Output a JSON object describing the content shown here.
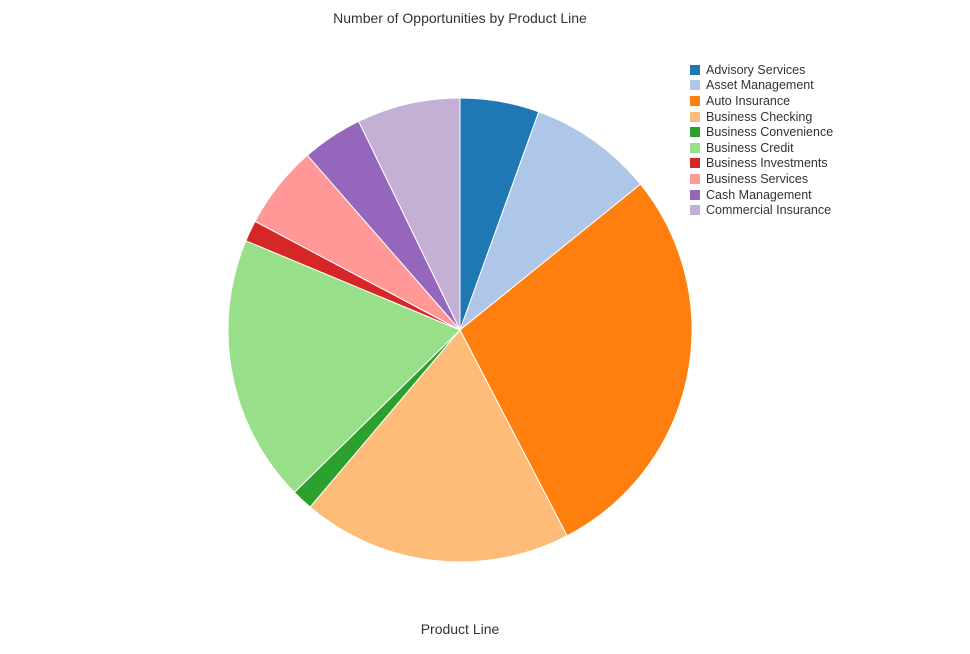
{
  "chart_data": {
    "type": "pie",
    "title": "Number of Opportunities by Product Line",
    "xlabel": "Product Line",
    "legend_position": "top-right",
    "categories": [
      "Advisory Services",
      "Asset Management",
      "Auto Insurance",
      "Business Checking",
      "Business Convenience",
      "Business Credit",
      "Business Investments",
      "Business Services",
      "Cash Management",
      "Commercial Insurance"
    ],
    "values": [
      5.6,
      8.8,
      28.6,
      19.1,
      1.5,
      18.9,
      1.5,
      5.9,
      4.3,
      7.3
    ],
    "colors": [
      "#1f77b4",
      "#aec7e8",
      "#ff7f0e",
      "#ffbb78",
      "#2ca02c",
      "#98df8a",
      "#d62728",
      "#ff9896",
      "#9467bd",
      "#c5b0d5"
    ]
  }
}
